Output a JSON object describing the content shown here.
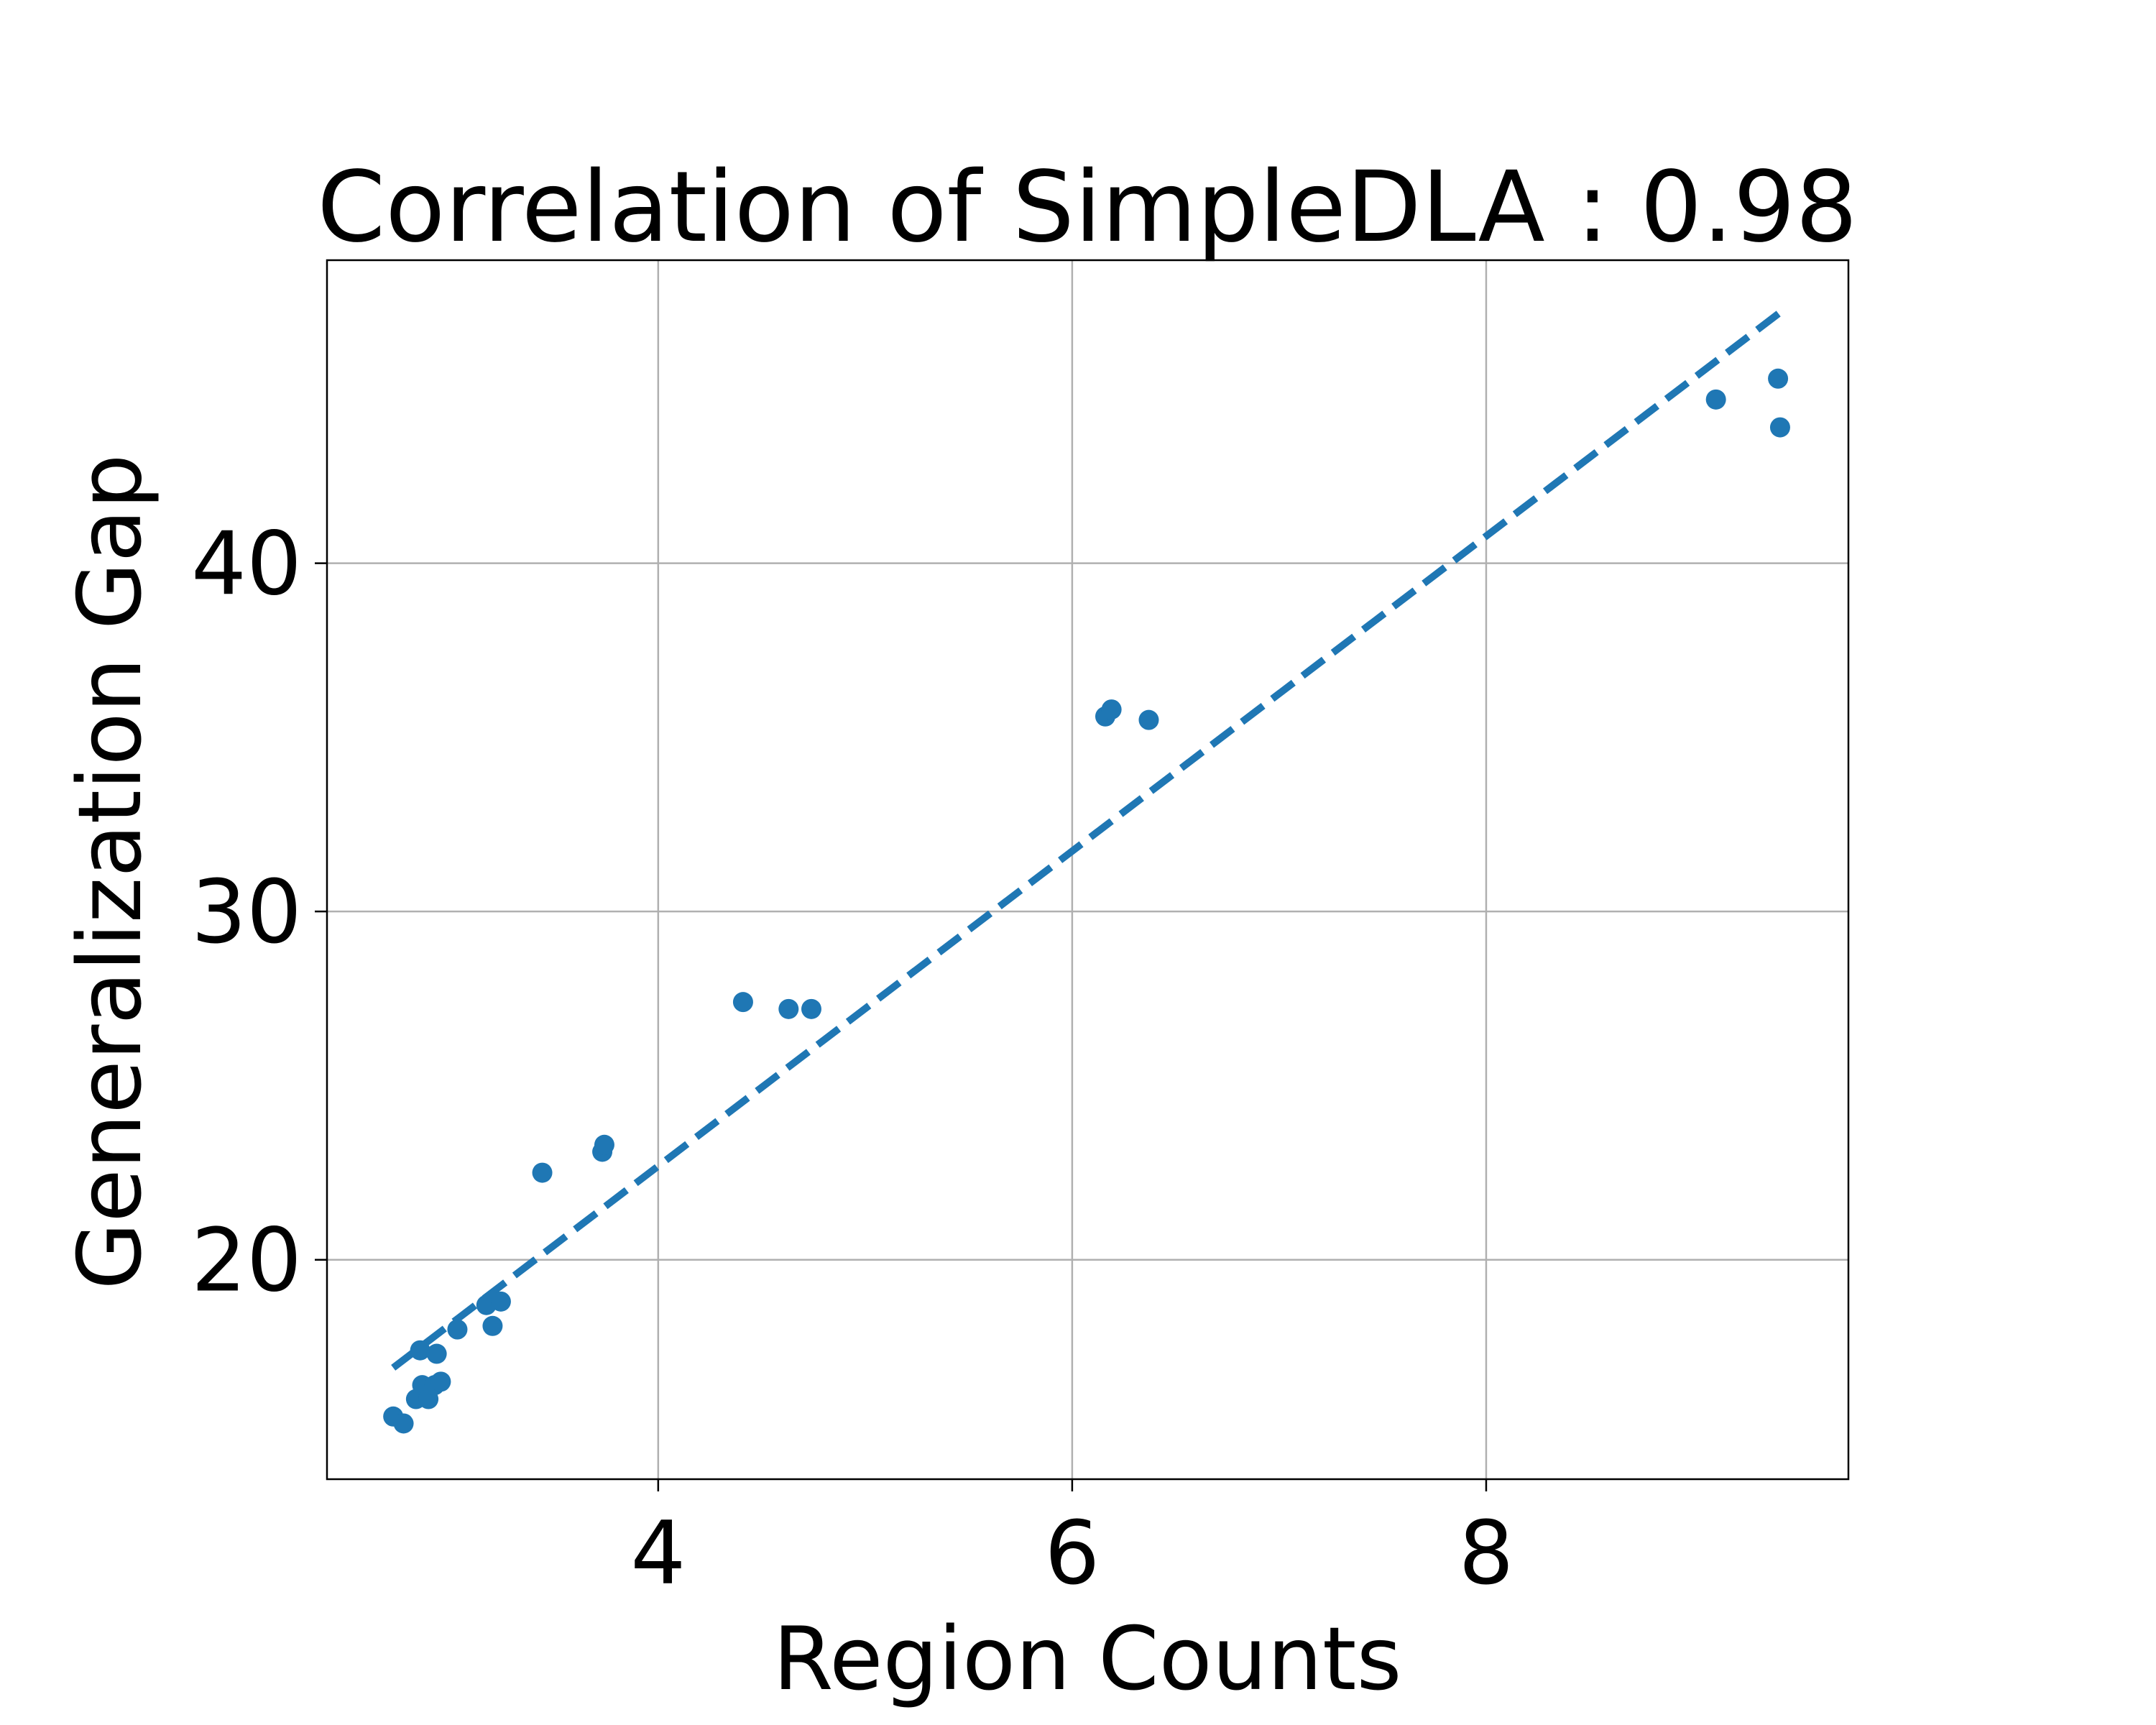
{
  "chart_data": {
    "type": "scatter",
    "title": "Correlation of SimpleDLA : 0.98",
    "xlabel": "Region Counts",
    "ylabel": "Generalization Gap",
    "xlim": [
      2.4,
      9.75
    ],
    "ylim": [
      13.7,
      48.7
    ],
    "xticks": [
      4,
      6,
      8
    ],
    "yticks": [
      20,
      30,
      40
    ],
    "grid": true,
    "colors": {
      "points": "#1f77b4",
      "trend": "#1f77b4"
    },
    "series": [
      {
        "values": [
          {
            "x": 2.72,
            "y": 15.5
          },
          {
            "x": 2.77,
            "y": 15.3
          },
          {
            "x": 2.83,
            "y": 16.0
          },
          {
            "x": 2.86,
            "y": 16.4
          },
          {
            "x": 2.89,
            "y": 16.0
          },
          {
            "x": 2.92,
            "y": 16.4
          },
          {
            "x": 2.95,
            "y": 16.5
          },
          {
            "x": 2.85,
            "y": 17.4
          },
          {
            "x": 2.93,
            "y": 17.3
          },
          {
            "x": 3.03,
            "y": 18.0
          },
          {
            "x": 3.17,
            "y": 18.7
          },
          {
            "x": 3.24,
            "y": 18.8
          },
          {
            "x": 3.2,
            "y": 18.1
          },
          {
            "x": 3.44,
            "y": 22.5
          },
          {
            "x": 3.73,
            "y": 23.1
          },
          {
            "x": 3.74,
            "y": 23.3
          },
          {
            "x": 4.41,
            "y": 27.4
          },
          {
            "x": 4.63,
            "y": 27.2
          },
          {
            "x": 4.74,
            "y": 27.2
          },
          {
            "x": 6.16,
            "y": 35.6
          },
          {
            "x": 6.19,
            "y": 35.8
          },
          {
            "x": 6.37,
            "y": 35.5
          },
          {
            "x": 9.11,
            "y": 44.7
          },
          {
            "x": 9.41,
            "y": 45.3
          },
          {
            "x": 9.42,
            "y": 43.9
          }
        ]
      }
    ],
    "trend_line": {
      "x": [
        2.72,
        9.42
      ],
      "y": [
        16.9,
        47.2
      ],
      "style": "dashed"
    }
  }
}
